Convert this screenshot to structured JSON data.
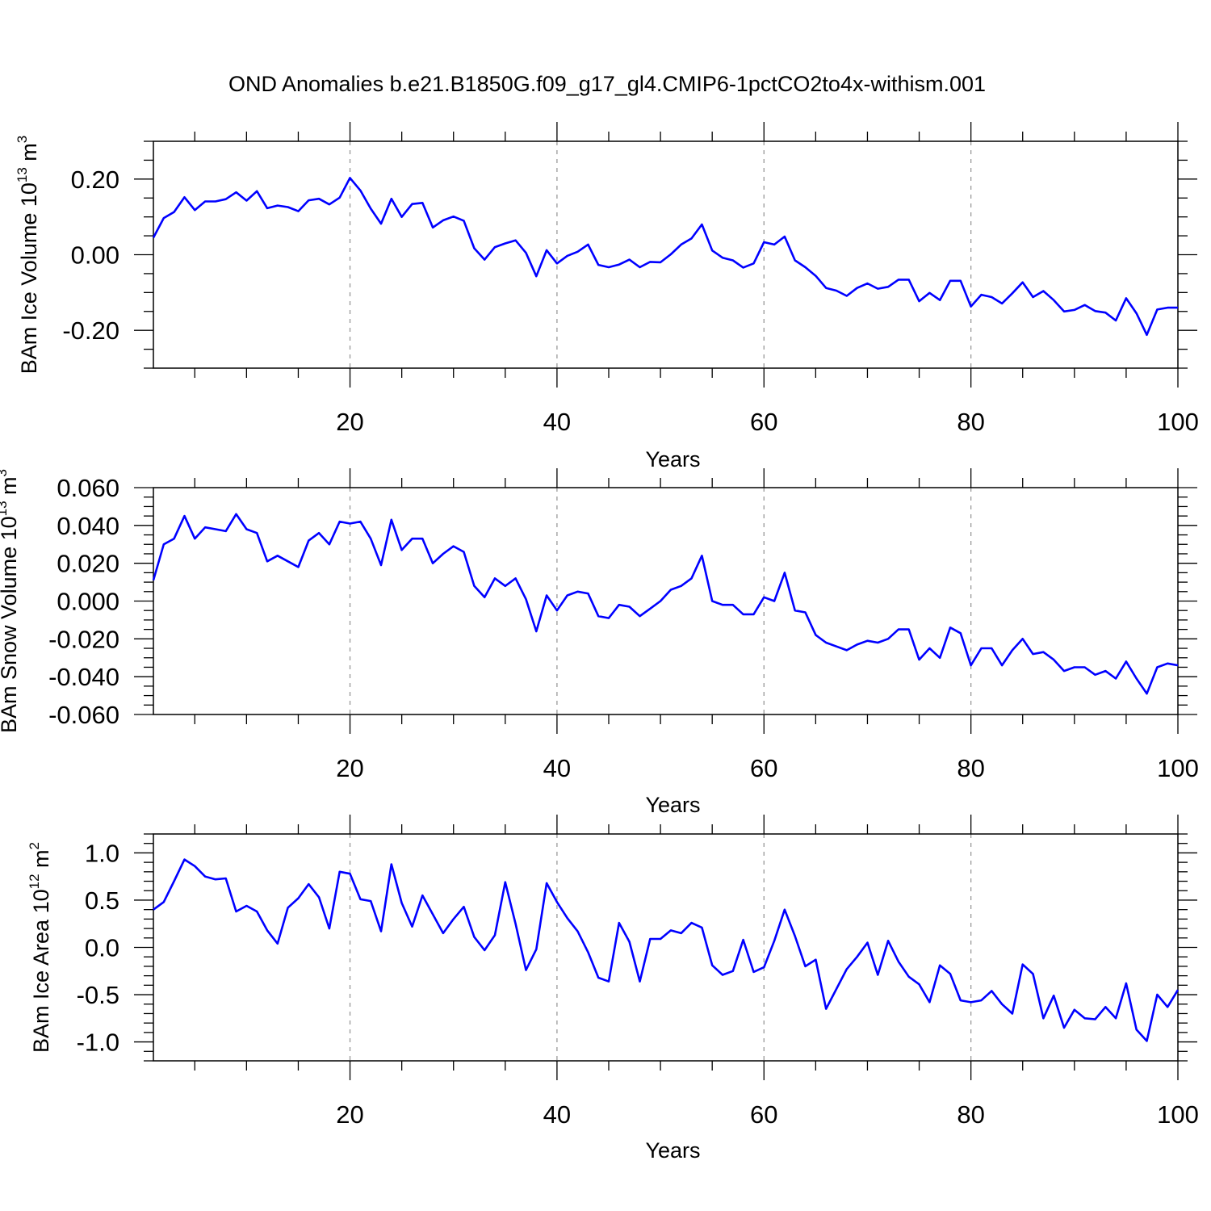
{
  "figure": {
    "title": "OND Anomalies b.e21.B1850G.f09_g17_gl4.CMIP6-1pctCO2to4x-withism.001",
    "line_color": "#0000ff"
  },
  "chart_data": [
    {
      "type": "line",
      "xlabel": "Years",
      "ylabel_prefix": "BAm Ice Volume 10",
      "ylabel_exp": "13",
      "ylabel_unit": " m",
      "ylabel_unit_exp": "3",
      "xlim": [
        1,
        100
      ],
      "ylim": [
        -0.3,
        0.3
      ],
      "xticks": [
        20,
        40,
        60,
        80,
        100
      ],
      "xtick_labels": [
        "20",
        "40",
        "60",
        "80",
        "100"
      ],
      "yticks": [
        -0.2,
        0.0,
        0.2
      ],
      "ytick_labels": [
        "-0.20",
        "0.00",
        "0.20"
      ],
      "minor_ystep": 0.05,
      "grid": "dashed vertical lines at x ticks",
      "series": [
        {
          "name": "BAm Ice Volume",
          "x_start": 1,
          "values": [
            0.045,
            0.097,
            0.113,
            0.152,
            0.118,
            0.141,
            0.141,
            0.147,
            0.165,
            0.143,
            0.168,
            0.123,
            0.13,
            0.126,
            0.115,
            0.144,
            0.148,
            0.133,
            0.151,
            0.203,
            0.17,
            0.122,
            0.082,
            0.148,
            0.1,
            0.134,
            0.137,
            0.072,
            0.091,
            0.101,
            0.09,
            0.017,
            -0.013,
            0.02,
            0.03,
            0.038,
            0.005,
            -0.057,
            0.012,
            -0.023,
            -0.003,
            0.008,
            0.027,
            -0.027,
            -0.033,
            -0.026,
            -0.013,
            -0.033,
            -0.019,
            -0.02,
            0.001,
            0.027,
            0.043,
            0.08,
            0.011,
            -0.008,
            -0.015,
            -0.034,
            -0.023,
            0.033,
            0.027,
            0.048,
            -0.015,
            -0.033,
            -0.056,
            -0.088,
            -0.095,
            -0.109,
            -0.088,
            -0.076,
            -0.09,
            -0.085,
            -0.066,
            -0.066,
            -0.123,
            -0.101,
            -0.12,
            -0.069,
            -0.069,
            -0.137,
            -0.106,
            -0.112,
            -0.129,
            -0.102,
            -0.073,
            -0.112,
            -0.096,
            -0.12,
            -0.15,
            -0.146,
            -0.133,
            -0.149,
            -0.153,
            -0.174,
            -0.115,
            -0.155,
            -0.212,
            -0.145,
            -0.14,
            -0.14
          ]
        }
      ]
    },
    {
      "type": "line",
      "xlabel": "Years",
      "ylabel_prefix": "BAm Snow Volume 10",
      "ylabel_exp": "13",
      "ylabel_unit": " m",
      "ylabel_unit_exp": "3",
      "xlim": [
        1,
        100
      ],
      "ylim": [
        -0.06,
        0.06
      ],
      "xticks": [
        20,
        40,
        60,
        80,
        100
      ],
      "xtick_labels": [
        "20",
        "40",
        "60",
        "80",
        "100"
      ],
      "yticks": [
        -0.06,
        -0.04,
        -0.02,
        0.0,
        0.02,
        0.04,
        0.06
      ],
      "ytick_labels": [
        "-0.060",
        "-0.040",
        "-0.020",
        "0.000",
        "0.020",
        "0.040",
        "0.060"
      ],
      "minor_ystep": 0.005,
      "grid": "dashed vertical lines at x ticks",
      "series": [
        {
          "name": "BAm Snow Volume",
          "x_start": 1,
          "values": [
            0.011,
            0.03,
            0.033,
            0.045,
            0.033,
            0.039,
            0.038,
            0.037,
            0.046,
            0.038,
            0.036,
            0.021,
            0.024,
            0.021,
            0.018,
            0.032,
            0.036,
            0.03,
            0.042,
            0.041,
            0.042,
            0.033,
            0.019,
            0.043,
            0.027,
            0.033,
            0.033,
            0.02,
            0.025,
            0.029,
            0.026,
            0.008,
            0.002,
            0.012,
            0.008,
            0.012,
            0.001,
            -0.016,
            0.003,
            -0.005,
            0.003,
            0.005,
            0.004,
            -0.008,
            -0.009,
            -0.002,
            -0.003,
            -0.008,
            -0.004,
            0.0,
            0.006,
            0.008,
            0.012,
            0.024,
            0.0,
            -0.002,
            -0.002,
            -0.007,
            -0.007,
            0.002,
            0.0,
            0.015,
            -0.005,
            -0.006,
            -0.018,
            -0.022,
            -0.024,
            -0.026,
            -0.023,
            -0.021,
            -0.022,
            -0.02,
            -0.015,
            -0.015,
            -0.031,
            -0.025,
            -0.03,
            -0.014,
            -0.017,
            -0.034,
            -0.025,
            -0.025,
            -0.034,
            -0.026,
            -0.02,
            -0.028,
            -0.027,
            -0.031,
            -0.037,
            -0.035,
            -0.035,
            -0.039,
            -0.037,
            -0.041,
            -0.032,
            -0.041,
            -0.049,
            -0.035,
            -0.033,
            -0.034
          ]
        }
      ]
    },
    {
      "type": "line",
      "xlabel": "Years",
      "ylabel_prefix": "BAm Ice Area 10",
      "ylabel_exp": "12",
      "ylabel_unit": " m",
      "ylabel_unit_exp": "2",
      "xlim": [
        1,
        100
      ],
      "ylim": [
        -1.2,
        1.2
      ],
      "xticks": [
        20,
        40,
        60,
        80,
        100
      ],
      "xtick_labels": [
        "20",
        "40",
        "60",
        "80",
        "100"
      ],
      "yticks": [
        -1.0,
        -0.5,
        0.0,
        0.5,
        1.0
      ],
      "ytick_labels": [
        "-1.0",
        "-0.5",
        "0.0",
        "0.5",
        "1.0"
      ],
      "minor_ystep": 0.1,
      "grid": "dashed vertical lines at x ticks",
      "series": [
        {
          "name": "BAm Ice Area",
          "x_start": 1,
          "values": [
            0.4,
            0.48,
            0.7,
            0.93,
            0.86,
            0.75,
            0.72,
            0.73,
            0.38,
            0.44,
            0.38,
            0.18,
            0.04,
            0.42,
            0.52,
            0.67,
            0.53,
            0.2,
            0.8,
            0.78,
            0.51,
            0.49,
            0.17,
            0.88,
            0.47,
            0.22,
            0.55,
            0.35,
            0.15,
            0.3,
            0.43,
            0.11,
            -0.03,
            0.13,
            0.69,
            0.25,
            -0.24,
            -0.02,
            0.68,
            0.48,
            0.31,
            0.17,
            -0.05,
            -0.32,
            -0.36,
            0.26,
            0.06,
            -0.36,
            0.09,
            0.09,
            0.18,
            0.15,
            0.26,
            0.21,
            -0.19,
            -0.29,
            -0.25,
            0.08,
            -0.26,
            -0.21,
            0.07,
            0.4,
            0.12,
            -0.2,
            -0.13,
            -0.65,
            -0.44,
            -0.23,
            -0.1,
            0.05,
            -0.29,
            0.07,
            -0.15,
            -0.31,
            -0.39,
            -0.58,
            -0.19,
            -0.28,
            -0.56,
            -0.58,
            -0.56,
            -0.46,
            -0.6,
            -0.7,
            -0.18,
            -0.28,
            -0.75,
            -0.51,
            -0.85,
            -0.66,
            -0.75,
            -0.76,
            -0.63,
            -0.75,
            -0.38,
            -0.87,
            -0.99,
            -0.5,
            -0.63,
            -0.45
          ]
        }
      ]
    }
  ]
}
